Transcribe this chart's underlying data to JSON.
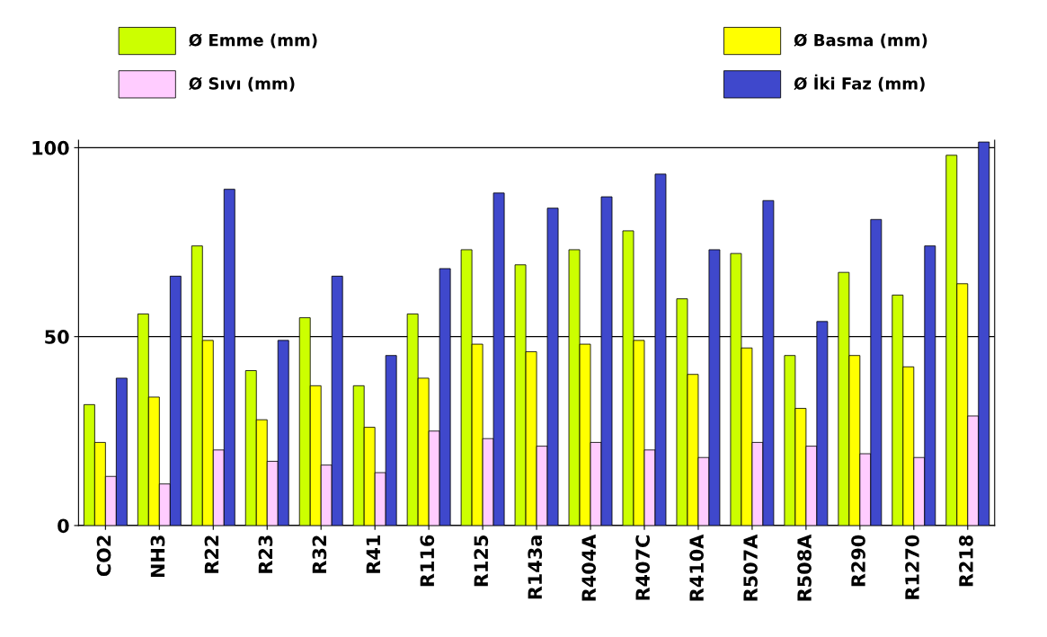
{
  "chart_data": {
    "type": "bar",
    "categories": [
      "CO2",
      "NH3",
      "R22",
      "R23",
      "R32",
      "R41",
      "R116",
      "R125",
      "R143a",
      "R404A",
      "R407C",
      "R410A",
      "R507A",
      "R508A",
      "R290",
      "R1270",
      "R218"
    ],
    "series": [
      {
        "name": "Ø Emme (mm)",
        "color": "#ccff00",
        "values": [
          32,
          56,
          74,
          41,
          55,
          37,
          56,
          73,
          69,
          73,
          78,
          60,
          72,
          45,
          67,
          61,
          98
        ]
      },
      {
        "name": "Ø Basma (mm)",
        "color": "#ffff00",
        "values": [
          22,
          34,
          49,
          28,
          37,
          26,
          39,
          48,
          46,
          48,
          49,
          40,
          47,
          31,
          45,
          42,
          64
        ]
      },
      {
        "name": "Ø Sıvı (mm)",
        "color": "#ffccff",
        "values": [
          13,
          11,
          20,
          17,
          16,
          14,
          25,
          23,
          21,
          22,
          20,
          18,
          22,
          21,
          19,
          18,
          29
        ]
      },
      {
        "name": "Ø İki Faz (mm)",
        "color": "#3f48cc",
        "values": [
          39,
          66,
          89,
          49,
          66,
          45,
          68,
          88,
          84,
          87,
          93,
          73,
          86,
          54,
          81,
          74,
          101.5
        ]
      }
    ],
    "ylim": [
      0,
      102
    ],
    "yticks": [
      0,
      50,
      100
    ],
    "grid": "y",
    "legend": "top"
  }
}
